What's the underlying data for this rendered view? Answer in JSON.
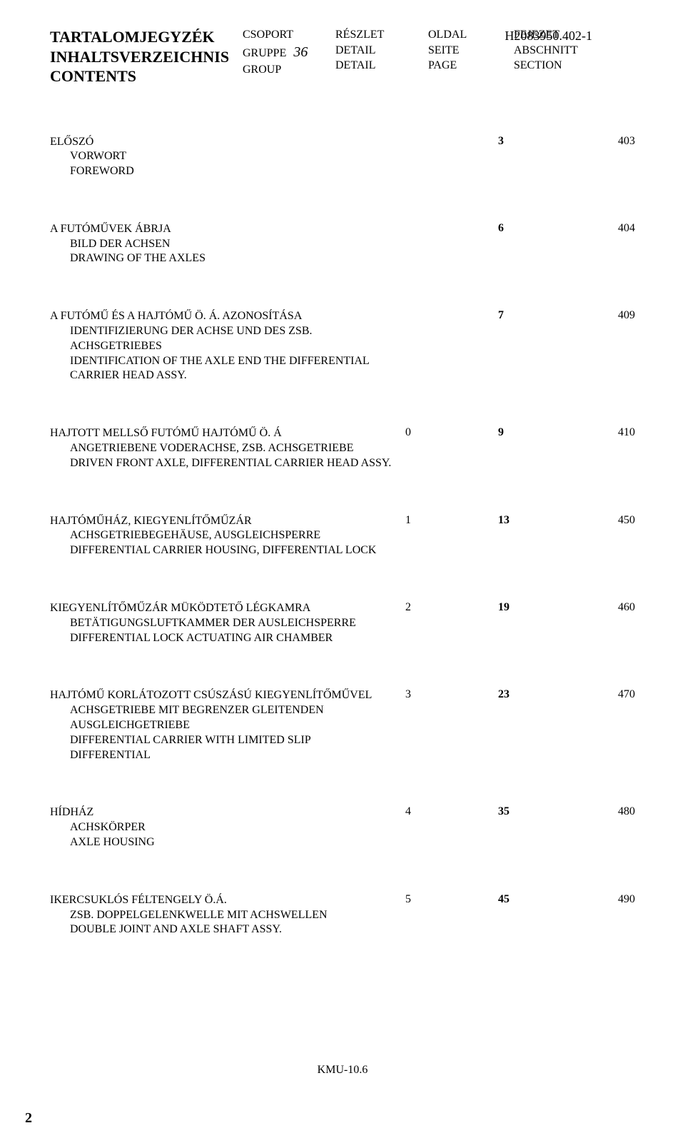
{
  "doc_code": "H2083950.402-1",
  "titles": {
    "hu": "TARTALOMJEGYZÉK",
    "de": "INHALTSVERZEICHNIS",
    "en": "CONTENTS"
  },
  "header": {
    "group": {
      "hu": "CSOPORT",
      "de": "GRUPPE",
      "en": "GROUP",
      "num": "36"
    },
    "detail": {
      "hu": "RÉSZLET",
      "de": "DETAIL",
      "en": "DETAIL"
    },
    "page": {
      "hu": "OLDAL",
      "de": "SEITE",
      "en": "PAGE"
    },
    "section": {
      "hu": "FEJEZET",
      "de": "ABSCHNITT",
      "en": "SECTION"
    }
  },
  "entries": [
    {
      "lines": [
        "ELŐSZÓ",
        "VORWORT",
        "FOREWORD"
      ],
      "detail": "",
      "page": "3",
      "section": "403"
    },
    {
      "lines": [
        "A FUTÓMŰVEK ÁBRJA",
        "BILD DER ACHSEN",
        "DRAWING OF THE AXLES"
      ],
      "detail": "",
      "page": "6",
      "section": "404"
    },
    {
      "lines": [
        "A FUTÓMŰ ÉS A HAJTÓMŰ Ö. Á. AZONOSÍTÁSA",
        "IDENTIFIZIERUNG DER  ACHSE UND DES ZSB.  ACHSGETRIEBES",
        "IDENTIFICATION OF THE AXLE END THE DIFFERENTIAL",
        "CARRIER HEAD ASSY."
      ],
      "detail": "",
      "page": "7",
      "section": "409"
    },
    {
      "lines": [
        "HAJTOTT MELLSŐ FUTÓMŰ HAJTÓMŰ Ö. Á",
        "ANGETRIEBENE VODERACHSE, ZSB.  ACHSGETRIEBE",
        "DRIVEN FRONT AXLE, DIFFERENTIAL CARRIER HEAD ASSY."
      ],
      "detail": "0",
      "page": "9",
      "section": "410"
    },
    {
      "lines": [
        "HAJTÓMŰHÁZ, KIEGYENLÍTŐMŰZÁR",
        "ACHSGETRIEBEGEHÄUSE, AUSGLEICHSPERRE",
        "DIFFERENTIAL CARRIER HOUSING, DIFFERENTIAL LOCK"
      ],
      "detail": "1",
      "page": "13",
      "section": "450"
    },
    {
      "lines": [
        "KIEGYENLÍTŐMŰZÁR MÜKÖDTETŐ LÉGKAMRA",
        "BETÄTIGUNGSLUFTKAMMER DER AUSLEICHSPERRE",
        "DIFFERENTIAL LOCK  ACTUATING AIR CHAMBER"
      ],
      "detail": "2",
      "page": "19",
      "section": "460"
    },
    {
      "lines": [
        "HAJTÓMŰ KORLÁTOZOTT CSÚSZÁSÚ KIEGYENLÍTŐMŰVEL",
        "ACHSGETRIEBE MIT BEGRENZER GLEITENDEN AUSGLEICHGETRIEBE",
        "DIFFERENTIAL CARRIER WITH LIMITED SLIP DIFFERENTIAL"
      ],
      "detail": "3",
      "page": "23",
      "section": "470"
    },
    {
      "lines": [
        "HÍDHÁZ",
        "ACHSKÖRPER",
        "AXLE HOUSING"
      ],
      "detail": "4",
      "page": "35",
      "section": "480"
    },
    {
      "lines": [
        "IKERCSUKLÓS FÉLTENGELY Ö.Á.",
        "ZSB. DOPPELGELENKWELLE MIT ACHSWELLEN",
        "DOUBLE JOINT AND AXLE SHAFT ASSY."
      ],
      "detail": "5",
      "page": "45",
      "section": "490"
    }
  ],
  "footer": "KMU-10.6",
  "page_number": "2"
}
